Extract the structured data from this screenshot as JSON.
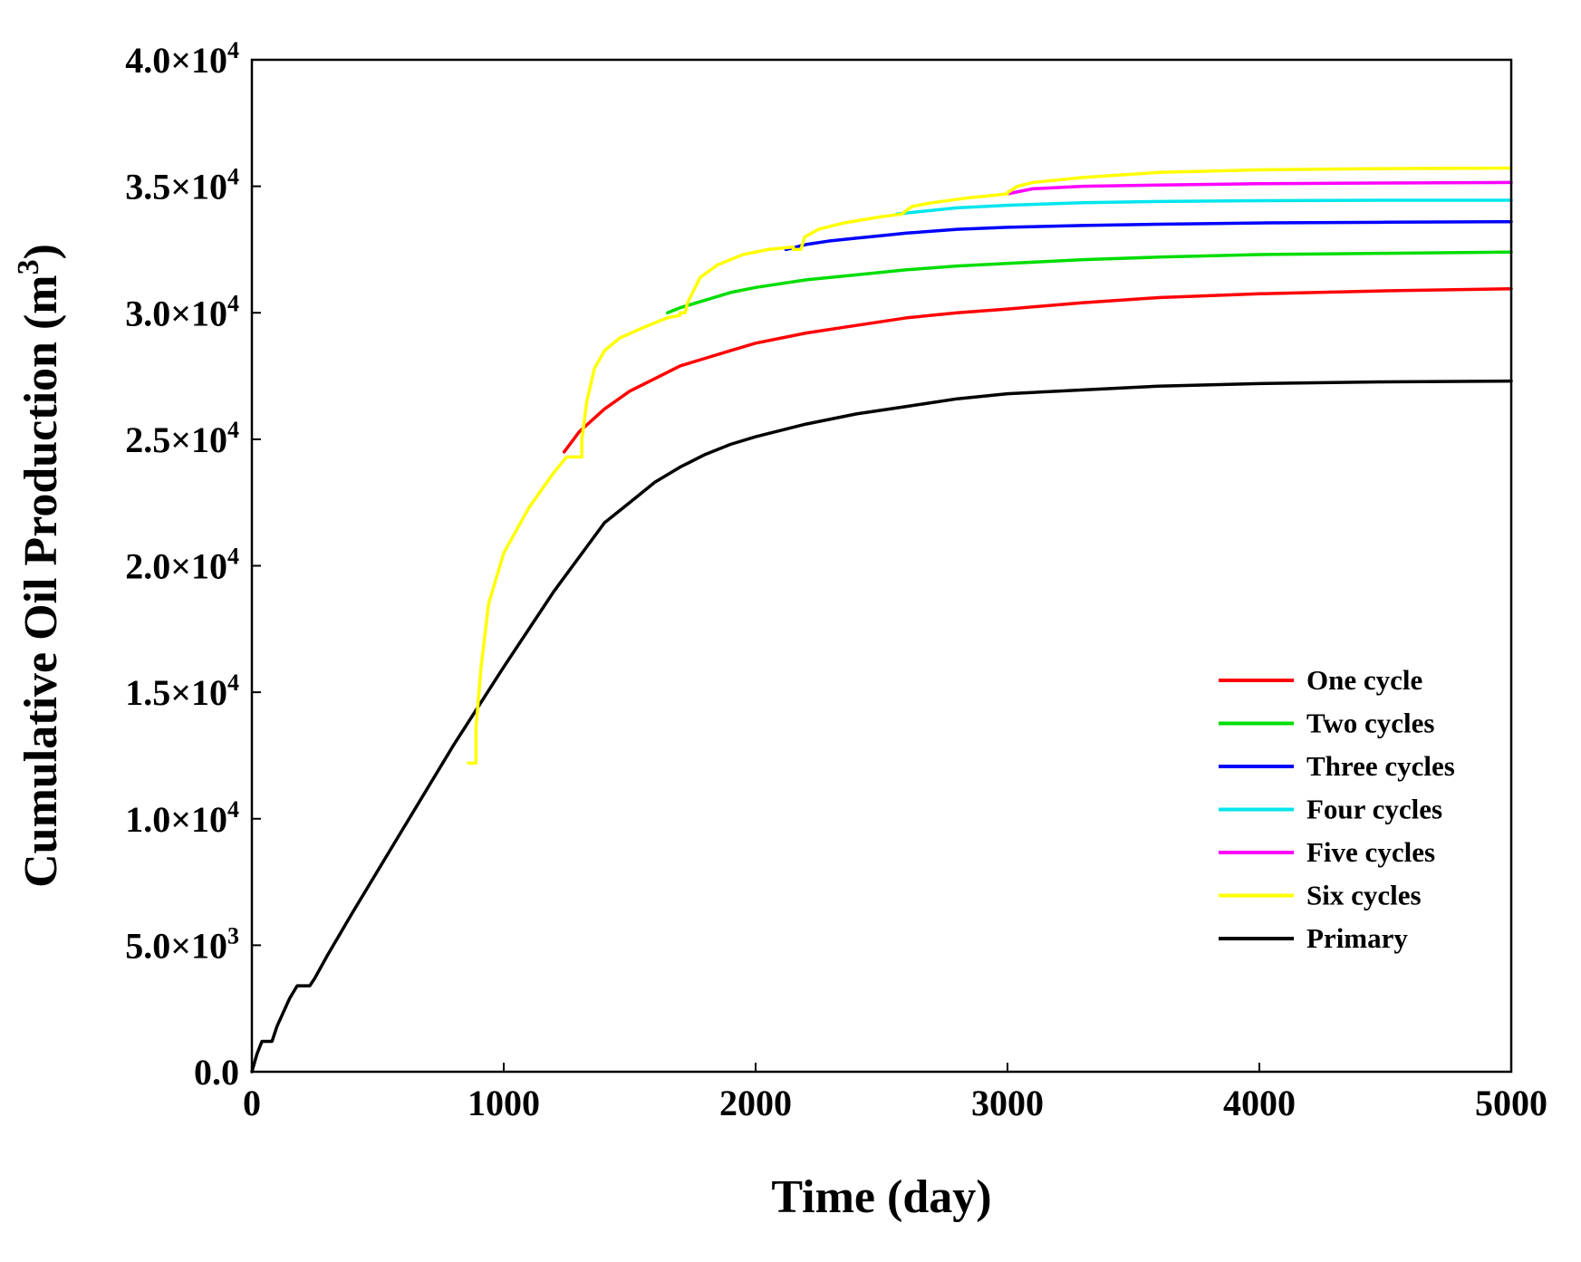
{
  "chart_data": {
    "type": "line",
    "title": "",
    "xlabel": "Time (day)",
    "ylabel": "Cumulative Oil Production (m",
    "ylabel_sup": "3",
    "ylabel_close": ")",
    "xlim": [
      0,
      5000
    ],
    "ylim": [
      0,
      40000
    ],
    "grid": false,
    "legend_position": "bottom-right",
    "x_ticks": [
      {
        "value": 0,
        "label": "0"
      },
      {
        "value": 1000,
        "label": "1000"
      },
      {
        "value": 2000,
        "label": "2000"
      },
      {
        "value": 3000,
        "label": "3000"
      },
      {
        "value": 4000,
        "label": "4000"
      },
      {
        "value": 5000,
        "label": "5000"
      }
    ],
    "y_ticks": [
      {
        "value": 0,
        "mant": "0.0",
        "exp": ""
      },
      {
        "value": 5000,
        "mant": "5.0×10",
        "exp": "3"
      },
      {
        "value": 10000,
        "mant": "1.0×10",
        "exp": "4"
      },
      {
        "value": 15000,
        "mant": "1.5×10",
        "exp": "4"
      },
      {
        "value": 20000,
        "mant": "2.0×10",
        "exp": "4"
      },
      {
        "value": 25000,
        "mant": "2.5×10",
        "exp": "4"
      },
      {
        "value": 30000,
        "mant": "3.0×10",
        "exp": "4"
      },
      {
        "value": 35000,
        "mant": "3.5×10",
        "exp": "4"
      },
      {
        "value": 40000,
        "mant": "4.0×10",
        "exp": "4"
      }
    ],
    "series": [
      {
        "name": "One cycle",
        "color": "#ff0000",
        "x": [
          1240,
          1300,
          1400,
          1500,
          1600,
          1700,
          1800,
          1900,
          2000,
          2200,
          2400,
          2600,
          2800,
          3000,
          3300,
          3600,
          4000,
          4500,
          5000
        ],
        "y": [
          24500,
          25300,
          26200,
          26900,
          27400,
          27900,
          28200,
          28500,
          28800,
          29200,
          29500,
          29800,
          30000,
          30150,
          30400,
          30600,
          30750,
          30870,
          30950
        ]
      },
      {
        "name": "Two cycles",
        "color": "#00dd00",
        "x": [
          1650,
          1700,
          1800,
          1900,
          2000,
          2200,
          2400,
          2600,
          2800,
          3000,
          3300,
          3600,
          4000,
          4500,
          5000
        ],
        "y": [
          30000,
          30200,
          30500,
          30800,
          31000,
          31300,
          31500,
          31700,
          31850,
          31950,
          32100,
          32200,
          32300,
          32350,
          32400
        ]
      },
      {
        "name": "Three cycles",
        "color": "#0000ff",
        "x": [
          2120,
          2200,
          2300,
          2400,
          2500,
          2600,
          2800,
          3000,
          3300,
          3600,
          4000,
          4500,
          5000
        ],
        "y": [
          32500,
          32700,
          32850,
          32950,
          33050,
          33150,
          33300,
          33380,
          33450,
          33500,
          33550,
          33580,
          33600
        ]
      },
      {
        "name": "Four cycles",
        "color": "#00e5ee",
        "x": [
          2560,
          2650,
          2800,
          3000,
          3300,
          3600,
          4000,
          4500,
          5000
        ],
        "y": [
          33900,
          34000,
          34150,
          34250,
          34350,
          34400,
          34430,
          34450,
          34450
        ]
      },
      {
        "name": "Five cycles",
        "color": "#ff00ff",
        "x": [
          3000,
          3100,
          3300,
          3600,
          4000,
          4500,
          5000
        ],
        "y": [
          34700,
          34900,
          35000,
          35050,
          35100,
          35130,
          35150
        ]
      },
      {
        "name": "Six cycles",
        "color": "#ffff00",
        "x": [
          860,
          890,
          890,
          910,
          940,
          1000,
          1100,
          1200,
          1250,
          1310,
          1310,
          1330,
          1360,
          1400,
          1460,
          1550,
          1650,
          1700,
          1700,
          1720,
          1730,
          1780,
          1850,
          1950,
          2050,
          2150,
          2150,
          2180,
          2195,
          2250,
          2350,
          2500,
          2580,
          2580,
          2620,
          2700,
          2850,
          3000,
          3000,
          3040,
          3100,
          3300,
          3600,
          4000,
          4500,
          5000
        ],
        "y": [
          12200,
          12200,
          13600,
          16000,
          18500,
          20500,
          22300,
          23700,
          24300,
          24300,
          25000,
          26500,
          27800,
          28500,
          29000,
          29400,
          29800,
          29900,
          30000,
          30000,
          30400,
          31400,
          31900,
          32300,
          32500,
          32600,
          32500,
          32500,
          33000,
          33300,
          33550,
          33800,
          33900,
          33900,
          34200,
          34350,
          34550,
          34700,
          34750,
          35000,
          35150,
          35350,
          35550,
          35650,
          35700,
          35720
        ]
      },
      {
        "name": "Primary",
        "color": "#000000",
        "x": [
          0,
          20,
          40,
          80,
          100,
          150,
          180,
          230,
          250,
          300,
          400,
          600,
          800,
          1000,
          1200,
          1400,
          1500,
          1550,
          1600,
          1700,
          1800,
          1900,
          2000,
          2200,
          2400,
          2600,
          2800,
          3000,
          3300,
          3600,
          4000,
          4500,
          5000
        ],
        "y": [
          0,
          700,
          1200,
          1200,
          1800,
          2900,
          3400,
          3400,
          3700,
          4600,
          6300,
          9600,
          12900,
          16000,
          19000,
          21700,
          22500,
          22900,
          23300,
          23900,
          24400,
          24800,
          25100,
          25600,
          26000,
          26300,
          26600,
          26800,
          26950,
          27100,
          27200,
          27270,
          27300
        ]
      }
    ]
  }
}
